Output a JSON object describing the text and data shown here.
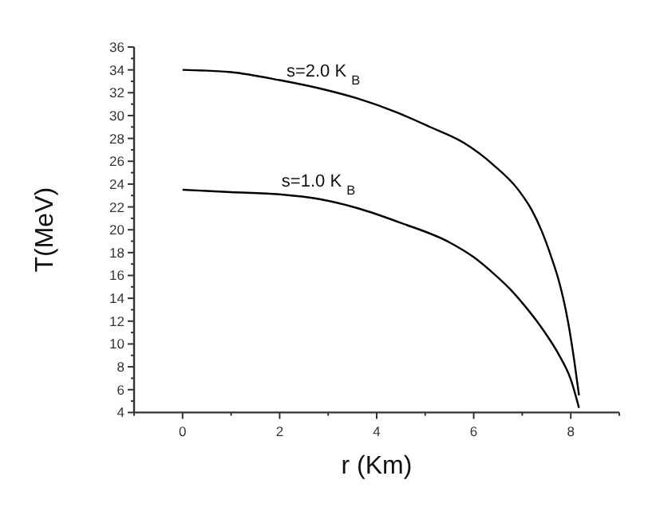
{
  "chart_data": {
    "type": "line",
    "xlabel": "r (Km)",
    "ylabel": "T(MeV)",
    "xlim": [
      -1,
      9
    ],
    "ylim": [
      4,
      36
    ],
    "xticks": [
      {
        "value": -1,
        "label": null
      },
      0,
      {
        "value": 1,
        "label": null
      },
      2,
      {
        "value": 3,
        "label": null
      },
      4,
      {
        "value": 5,
        "label": null
      },
      6,
      {
        "value": 7,
        "label": null
      },
      8,
      {
        "value": 9,
        "label": null
      }
    ],
    "yticks": [
      4,
      {
        "value": 5,
        "label": null
      },
      6,
      {
        "value": 7,
        "label": null
      },
      8,
      {
        "value": 9,
        "label": null
      },
      10,
      {
        "value": 11,
        "label": null
      },
      12,
      {
        "value": 13,
        "label": null
      },
      14,
      {
        "value": 15,
        "label": null
      },
      16,
      {
        "value": 17,
        "label": null
      },
      18,
      {
        "value": 19,
        "label": null
      },
      20,
      {
        "value": 21,
        "label": null
      },
      22,
      {
        "value": 23,
        "label": null
      },
      24,
      {
        "value": 25,
        "label": null
      },
      26,
      {
        "value": 27,
        "label": null
      },
      28,
      {
        "value": 29,
        "label": null
      },
      30,
      {
        "value": 31,
        "label": null
      },
      32,
      {
        "value": 33,
        "label": null
      },
      34,
      {
        "value": 35,
        "label": null
      },
      36
    ],
    "series": [
      {
        "name": "s=2.0 K $_{B}$",
        "color": "#000000",
        "x": [
          0,
          1,
          2,
          2.9,
          3.6,
          4.4,
          5.1,
          5.8,
          6.4,
          6.9,
          7.2,
          7.4,
          7.6,
          7.75,
          7.85,
          7.95,
          8.07,
          8.17
        ],
        "values": [
          34,
          33.8,
          33.1,
          32.3,
          31.5,
          30.3,
          29,
          27.6,
          25.7,
          23.6,
          21.7,
          19.9,
          17.6,
          15.6,
          13.9,
          11.8,
          8.6,
          5.5
        ]
      },
      {
        "name": "s=1.0 K $_{B}$",
        "color": "#000000",
        "x": [
          0,
          1,
          2,
          2.8,
          3.6,
          4.5,
          5.5,
          6,
          6.4,
          6.75,
          7,
          7.3,
          7.5,
          7.75,
          8,
          8.17
        ],
        "values": [
          23.5,
          23.3,
          23.1,
          22.7,
          21.9,
          20.6,
          18.9,
          17.6,
          16.2,
          14.8,
          13.6,
          12,
          10.8,
          9.1,
          6.9,
          4.4
        ]
      }
    ],
    "grid": false,
    "marker": "none",
    "line_style": "solid"
  }
}
